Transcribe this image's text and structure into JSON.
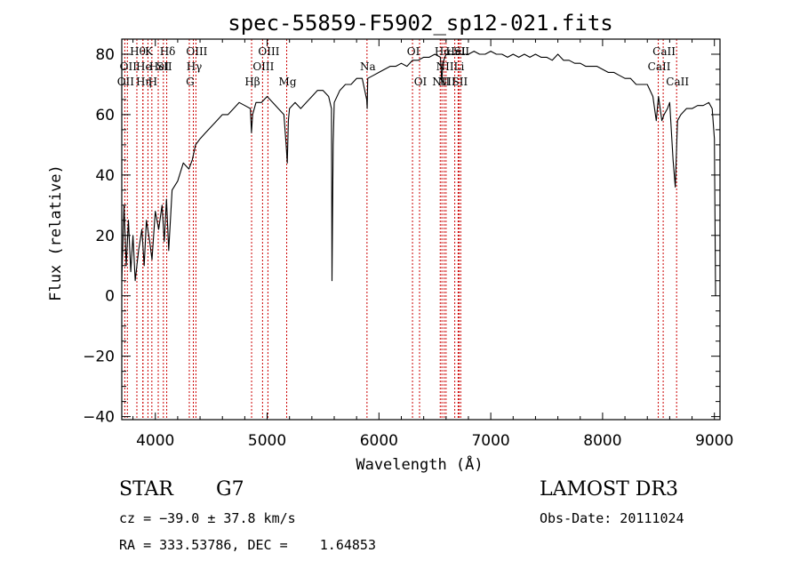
{
  "chart_data": {
    "type": "line",
    "title": "spec-55859-F5902_sp12-021.fits",
    "xlabel": "Wavelength (Å)",
    "ylabel": "Flux (relative)",
    "xlim": [
      3700,
      9050
    ],
    "ylim": [
      -41,
      85
    ],
    "xticks": [
      4000,
      5000,
      6000,
      7000,
      8000,
      9000
    ],
    "xtick_labels": [
      "4000",
      "5000",
      "6000",
      "7000",
      "8000",
      "9000"
    ],
    "yticks": [
      -40,
      -20,
      0,
      20,
      40,
      60,
      80
    ],
    "ytick_labels": [
      "−40",
      "−20",
      "0",
      "20",
      "40",
      "60",
      "80"
    ],
    "grid": false,
    "line_color": "#000000",
    "marker_color": "#cc0000",
    "series": [
      {
        "values_x": [
          3700,
          3720,
          3740,
          3760,
          3780,
          3800,
          3820,
          3850,
          3880,
          3900,
          3920,
          3950,
          3970,
          4000,
          4030,
          4060,
          4080,
          4100,
          4120,
          4150,
          4200,
          4250,
          4300,
          4330,
          4360,
          4400,
          4450,
          4500,
          4550,
          4600,
          4650,
          4700,
          4750,
          4800,
          4850,
          4860,
          4870,
          4900,
          4950,
          5000,
          5050,
          5100,
          5150,
          5170,
          5180,
          5190,
          5200,
          5250,
          5300,
          5350,
          5400,
          5450,
          5500,
          5550,
          5575,
          5580,
          5590,
          5600,
          5650,
          5700,
          5750,
          5800,
          5850,
          5890,
          5895,
          5900,
          5950,
          6000,
          6050,
          6100,
          6150,
          6200,
          6250,
          6300,
          6350,
          6400,
          6450,
          6500,
          6550,
          6563,
          6570,
          6600,
          6650,
          6700,
          6750,
          6800,
          6850,
          6900,
          6950,
          7000,
          7050,
          7100,
          7150,
          7200,
          7250,
          7300,
          7350,
          7400,
          7450,
          7500,
          7550,
          7600,
          7650,
          7700,
          7750,
          7800,
          7850,
          7900,
          7950,
          8000,
          8050,
          8100,
          8150,
          8200,
          8250,
          8300,
          8350,
          8400,
          8450,
          8480,
          8500,
          8530,
          8550,
          8580,
          8600,
          8630,
          8650,
          8670,
          8700,
          8750,
          8800,
          8850,
          8900,
          8950,
          8980,
          9000,
          9010
        ],
        "values_y": [
          5,
          30,
          10,
          25,
          8,
          20,
          5,
          15,
          22,
          10,
          25,
          18,
          12,
          28,
          22,
          30,
          18,
          32,
          15,
          35,
          38,
          44,
          42,
          45,
          50,
          52,
          54,
          56,
          58,
          60,
          60,
          62,
          64,
          63,
          62,
          54,
          60,
          64,
          64,
          66,
          64,
          62,
          60,
          50,
          44,
          58,
          62,
          64,
          62,
          64,
          66,
          68,
          68,
          66,
          62,
          5,
          50,
          64,
          68,
          70,
          70,
          72,
          72,
          65,
          62,
          72,
          73,
          74,
          75,
          76,
          76,
          77,
          76,
          78,
          78,
          79,
          79,
          80,
          79,
          70,
          77,
          80,
          80,
          80,
          80,
          80,
          81,
          80,
          80,
          81,
          80,
          80,
          79,
          80,
          79,
          80,
          79,
          80,
          79,
          79,
          78,
          80,
          78,
          78,
          77,
          77,
          76,
          76,
          76,
          75,
          74,
          74,
          73,
          72,
          72,
          70,
          70,
          70,
          66,
          58,
          66,
          58,
          60,
          62,
          64,
          45,
          36,
          58,
          60,
          62,
          62,
          63,
          63,
          64,
          62,
          52,
          0
        ]
      }
    ],
    "line_markers": [
      {
        "wavelength": 3727,
        "label": "OII",
        "row": 2
      },
      {
        "wavelength": 3750,
        "label": "OII",
        "row": 1
      },
      {
        "wavelength": 3835,
        "label": "Hθ",
        "row": 0
      },
      {
        "wavelength": 3889,
        "label": "Hη",
        "row": 2
      },
      {
        "wavelength": 3889,
        "label": "He",
        "row": 1
      },
      {
        "wavelength": 3934,
        "label": "K",
        "row": 0
      },
      {
        "wavelength": 3969,
        "label": "H",
        "row": 2
      },
      {
        "wavelength": 4026,
        "label": "HeI",
        "row": 1
      },
      {
        "wavelength": 4072,
        "label": "SII",
        "row": 1
      },
      {
        "wavelength": 4102,
        "label": "Hδ",
        "row": 0
      },
      {
        "wavelength": 4304,
        "label": "G",
        "row": 2
      },
      {
        "wavelength": 4340,
        "label": "Hγ",
        "row": 1
      },
      {
        "wavelength": 4363,
        "label": "OIII",
        "row": 0
      },
      {
        "wavelength": 4861,
        "label": "Hβ",
        "row": 2
      },
      {
        "wavelength": 4959,
        "label": "OIII",
        "row": 1
      },
      {
        "wavelength": 5007,
        "label": "OIII",
        "row": 0
      },
      {
        "wavelength": 5175,
        "label": "Mg",
        "row": 2
      },
      {
        "wavelength": 5893,
        "label": "Na",
        "row": 1
      },
      {
        "wavelength": 6300,
        "label": "OI",
        "row": 0
      },
      {
        "wavelength": 6363,
        "label": "OI",
        "row": 2
      },
      {
        "wavelength": 6548,
        "label": "NII",
        "row": 2
      },
      {
        "wavelength": 6563,
        "label": "Hα",
        "row": 0
      },
      {
        "wavelength": 6583,
        "label": "NII",
        "row": 1
      },
      {
        "wavelength": 6600,
        "label": "NII",
        "row": 2
      },
      {
        "wavelength": 6678,
        "label": "HeI",
        "row": 0
      },
      {
        "wavelength": 6708,
        "label": "Li",
        "row": 1
      },
      {
        "wavelength": 6716,
        "label": "SII",
        "row": 2
      },
      {
        "wavelength": 6731,
        "label": "SII",
        "row": 0
      },
      {
        "wavelength": 8498,
        "label": "CaII",
        "row": 1
      },
      {
        "wavelength": 8542,
        "label": "CaII",
        "row": 0
      },
      {
        "wavelength": 8662,
        "label": "CaII",
        "row": 2
      }
    ]
  },
  "info": {
    "class": "STAR",
    "subclass": "G7",
    "cz": "cz = −39.0 ± 37.8 km/s",
    "radec": "RA = 333.53786, DEC =    1.64853",
    "survey": "LAMOST DR3",
    "obs_date": "Obs-Date: 20111024"
  }
}
